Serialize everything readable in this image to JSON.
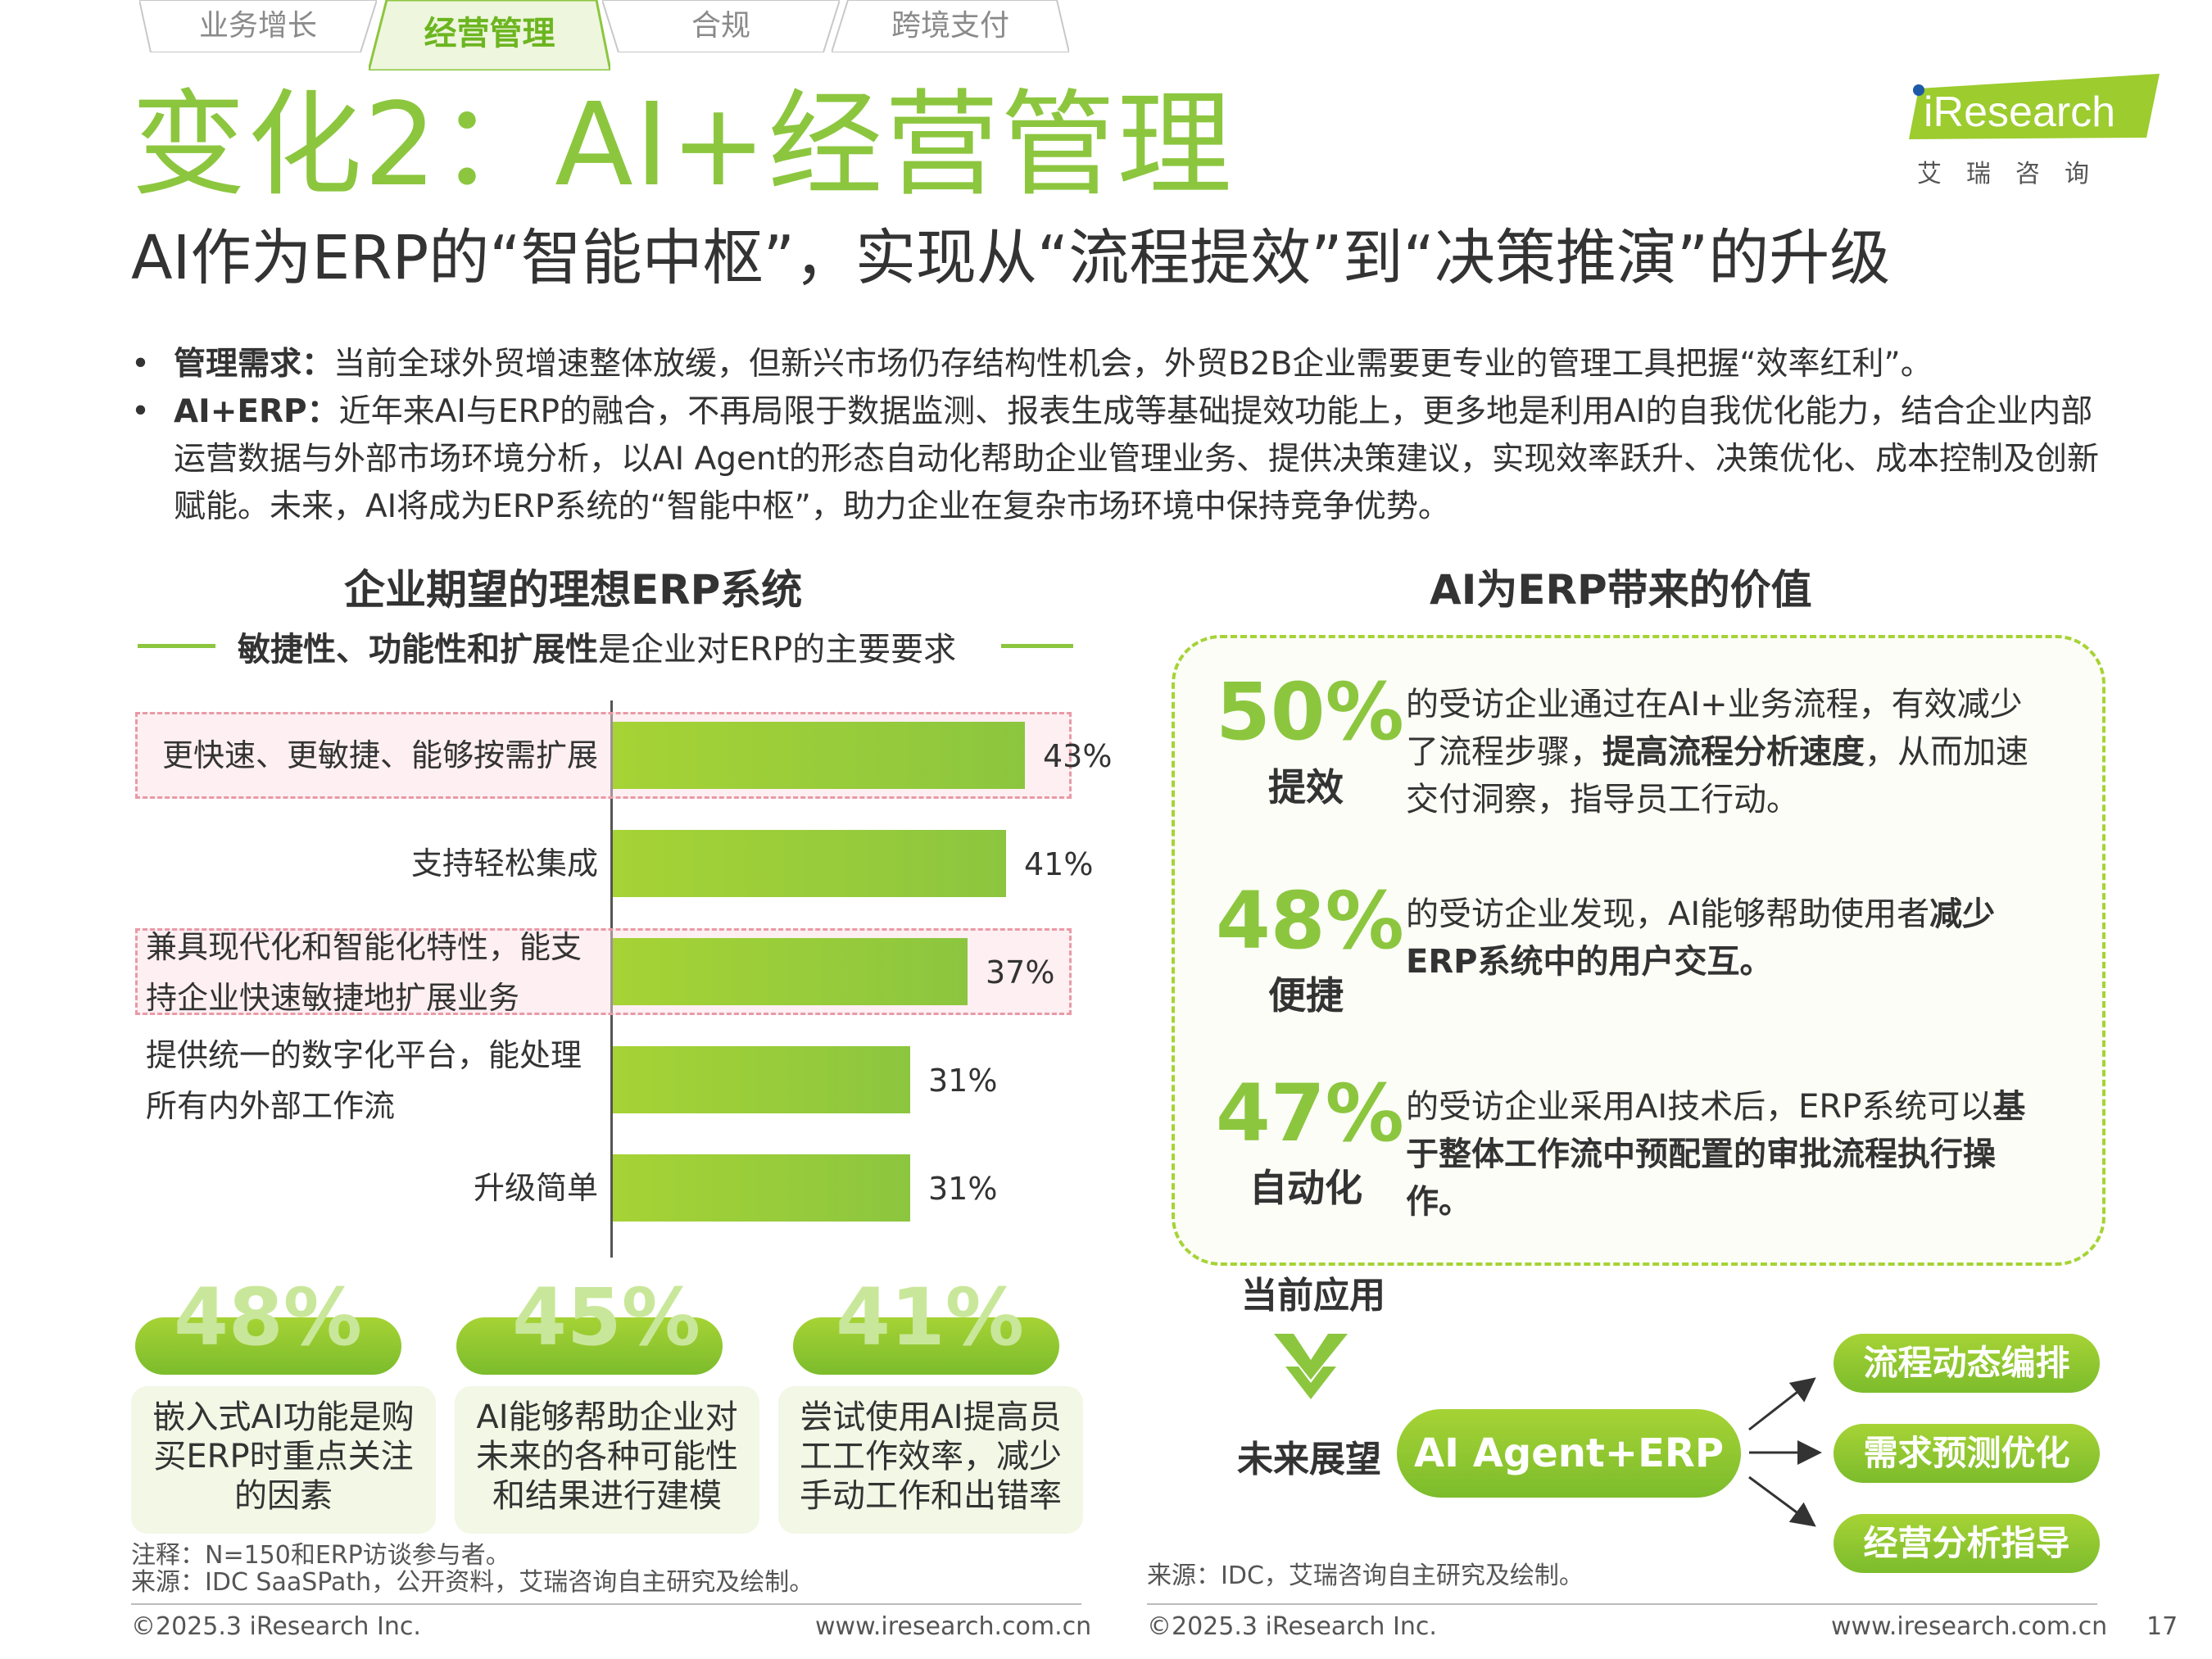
{
  "tabs": [
    {
      "label": "业务增长",
      "active": false
    },
    {
      "label": "经营管理",
      "active": true
    },
    {
      "label": "合规",
      "active": false
    },
    {
      "label": "跨境支付",
      "active": false
    }
  ],
  "logo": {
    "brand": "iResearch",
    "cn": "艾 瑞 咨 询"
  },
  "title": "变化2：AI+经营管理",
  "subtitle": "AI作为ERP的“智能中枢”，实现从“流程提效”到“决策推演”的升级",
  "bullets": [
    {
      "label": "管理需求：",
      "text": "当前全球外贸增速整体放缓，但新兴市场仍存结构性机会，外贸B2B企业需要更专业的管理工具把握“效率红利”。"
    },
    {
      "label": "AI+ERP：",
      "text": "近年来AI与ERP的融合，不再局限于数据监测、报表生成等基础提效功能上，更多地是利用AI的自我优化能力，结合企业内部运营数据与外部市场环境分析，以AI Agent的形态自动化帮助企业管理业务、提供决策建议，实现效率跃升、决策优化、成本控制及创新赋能。未来，AI将成为ERP系统的“智能中枢”，助力企业在复杂市场环境中保持竞争优势。"
    }
  ],
  "left_section": {
    "title": "企业期望的理想ERP系统",
    "requirement_bold": "敏捷性、功能性和扩展性",
    "requirement_rest": "是企业对ERP的主要要求"
  },
  "chart_data": {
    "type": "bar",
    "orientation": "horizontal",
    "categories": [
      "更快速、更敏捷、能够按需扩展",
      "支持轻松集成",
      "兼具现代化和智能化特性，能支持企业快速敏捷地扩展业务",
      "提供统一的数字化平台，能处理所有内外部工作流",
      "升级简单"
    ],
    "category_lines": [
      [
        "更快速、更敏捷、能够按需扩展"
      ],
      [
        "支持轻松集成"
      ],
      [
        "兼具现代化和智能化特性，能支",
        "持企业快速敏捷地扩展业务"
      ],
      [
        "提供统一的数字化平台，能处理",
        "所有内外部工作流"
      ],
      [
        "升级简单"
      ]
    ],
    "values": [
      43,
      41,
      37,
      31,
      31
    ],
    "value_labels": [
      "43%",
      "41%",
      "37%",
      "31%",
      "31%"
    ],
    "highlighted": [
      true,
      false,
      true,
      false,
      false
    ],
    "bar_color": "#8cc63f",
    "highlight_color": "#e89aa6"
  },
  "stats": [
    {
      "value": "48%",
      "lines": [
        "嵌入式AI功能是购",
        "买ERP时重点关注",
        "的因素"
      ]
    },
    {
      "value": "45%",
      "lines": [
        "AI能够帮助企业对",
        "未来的各种可能性",
        "和结果进行建模"
      ]
    },
    {
      "value": "41%",
      "lines": [
        "尝试使用AI提高员",
        "工工作效率，减少",
        "手动工作和出错率"
      ]
    }
  ],
  "left_note": "注释：N=150和ERP访谈参与者。",
  "left_source": "来源：IDC SaaSPath，公开资料，艾瑞咨询自主研究及绘制。",
  "right_section": {
    "title": "AI为ERP带来的价值",
    "items": [
      {
        "pct": "50%",
        "label": "提效",
        "parts": [
          {
            "text": "的受访企业通过在AI+业务流程，有效减少了流程步骤，",
            "bold": false
          },
          {
            "text": "提高流程分析速度",
            "bold": true
          },
          {
            "text": "，从而加速交付洞察，指导员工行动。",
            "bold": false
          }
        ]
      },
      {
        "pct": "48%",
        "label": "便捷",
        "parts": [
          {
            "text": "的受访企业发现，AI能够帮助使用者",
            "bold": false
          },
          {
            "text": "减少ERP系统中的用户交互。",
            "bold": true
          }
        ]
      },
      {
        "pct": "47%",
        "label": "自动化",
        "parts": [
          {
            "text": "的受访企业采用AI技术后，ERP系统可以",
            "bold": false
          },
          {
            "text": "基于整体工作流中预配置的审批流程执行操作。",
            "bold": true
          }
        ]
      }
    ],
    "current_label": "当前应用",
    "future_label": "未来展望",
    "agent": "AI Agent+ERP",
    "applications": [
      "流程动态编排",
      "需求预测优化",
      "经营分析指导"
    ]
  },
  "right_source": "来源：IDC，艾瑞咨询自主研究及绘制。",
  "footer": {
    "copyright_left": "©2025.3 iResearch Inc.",
    "url_left": "www.iresearch.com.cn",
    "copyright_right": "©2025.3 iResearch Inc.",
    "url_right": "www.iresearch.com.cn",
    "page": "17"
  },
  "colors": {
    "accent": "#8cc63f",
    "accent_dark": "#7cbc2c",
    "highlight": "#e89aa6",
    "text": "#333333"
  }
}
